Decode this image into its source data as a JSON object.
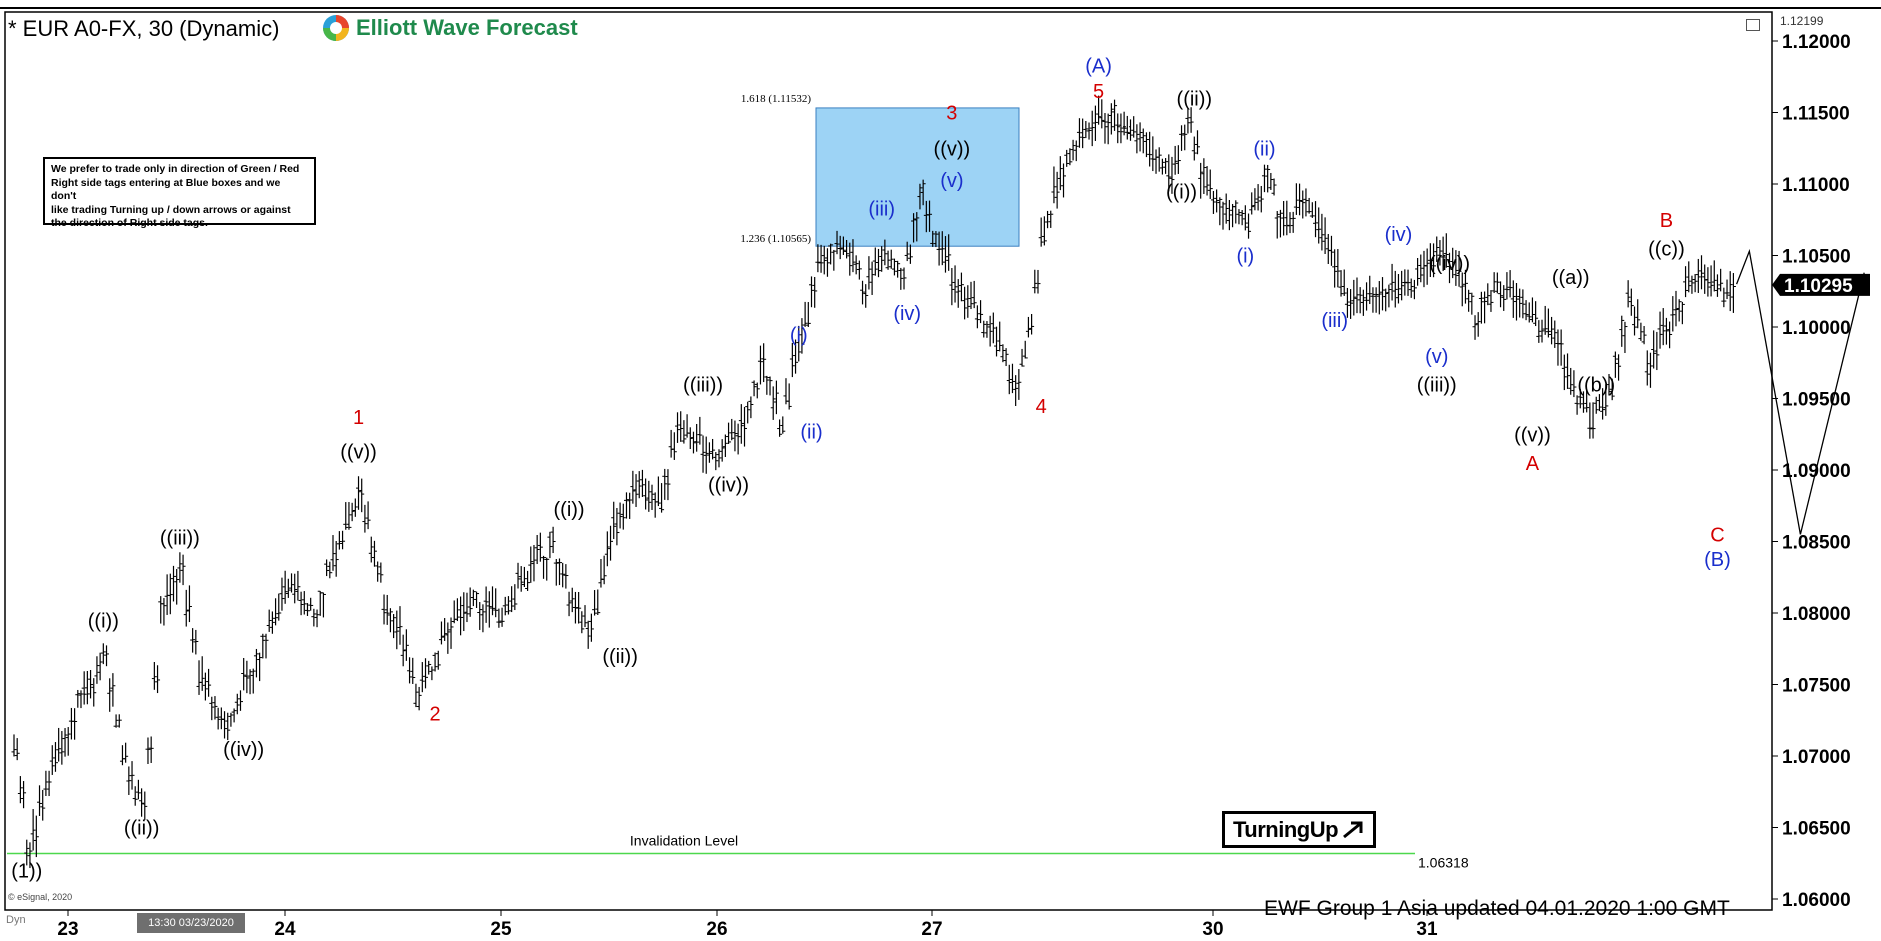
{
  "header": {
    "title": "* EUR A0-FX, 30 (Dynamic)",
    "logo_text": "Elliott Wave Forecast",
    "logo_icon": "ewf-globe-icon"
  },
  "note": {
    "lines": [
      "We prefer to trade only in direction of Green / Red",
      "Right side tags entering at Blue boxes and we don't",
      "like trading Turning up / down arrows or against",
      "the direction of Right side tags."
    ]
  },
  "turning_label": "TurningUp",
  "turning_icon": "arrow-up-right-icon",
  "footer": "EWF Group  1 Asia  updated 04.01.2020 1:00 GMT",
  "esignal": "© eSignal, 2020",
  "dyn_label": "Dyn",
  "time_box": "13:30 03/23/2020",
  "colors": {
    "black": "#000000",
    "red": "#d40000",
    "blue": "#1a2ecc",
    "box_fill": "#9dd3f5",
    "green_line": "#4cd84c",
    "logo_green": "#1f8a4c"
  },
  "chart_data": {
    "type": "ohlc-bars",
    "ylim": [
      1.06,
      1.122
    ],
    "y_ticks": [
      "1.06000",
      "1.06500",
      "1.07000",
      "1.07500",
      "1.08000",
      "1.08500",
      "1.09000",
      "1.09500",
      "1.10000",
      "1.10500",
      "1.11000",
      "1.11500",
      "1.12000"
    ],
    "y_top_label": "1.12199",
    "current_price": "1.10295",
    "x_ticks": [
      "23",
      "24",
      "25",
      "26",
      "27",
      "30",
      "31"
    ],
    "invalidation": {
      "label": "Invalidation Level",
      "value": 1.06318,
      "value_label": "1.06318"
    },
    "blue_box": {
      "top": 1.11532,
      "bottom": 1.10565,
      "top_label": "1.618 (1.11532)",
      "bottom_label": "1.236 (1.10565)"
    },
    "price_path": [
      [
        0,
        1.0705
      ],
      [
        2,
        1.0635
      ],
      [
        6,
        1.07
      ],
      [
        10,
        1.0735
      ],
      [
        14,
        1.077
      ],
      [
        17,
        1.0705
      ],
      [
        20,
        1.0665
      ],
      [
        23,
        1.0805
      ],
      [
        26,
        1.0825
      ],
      [
        29,
        1.076
      ],
      [
        33,
        1.072
      ],
      [
        38,
        1.077
      ],
      [
        43,
        1.082
      ],
      [
        47,
        1.08
      ],
      [
        51,
        1.0855
      ],
      [
        54,
        1.0885
      ],
      [
        58,
        1.081
      ],
      [
        63,
        1.0745
      ],
      [
        67,
        1.0785
      ],
      [
        71,
        1.0805
      ],
      [
        76,
        1.08
      ],
      [
        80,
        1.0825
      ],
      [
        84,
        1.0848
      ],
      [
        87,
        1.0815
      ],
      [
        90,
        1.079
      ],
      [
        94,
        1.086
      ],
      [
        97,
        1.089
      ],
      [
        101,
        1.0875
      ],
      [
        104,
        1.0935
      ],
      [
        107,
        1.0915
      ],
      [
        110,
        1.0905
      ],
      [
        114,
        1.0935
      ],
      [
        117,
        1.097
      ],
      [
        120,
        1.0935
      ],
      [
        123,
        1.099
      ],
      [
        126,
        1.104
      ],
      [
        129,
        1.106
      ],
      [
        133,
        1.1025
      ],
      [
        136,
        1.105
      ],
      [
        139,
        1.104
      ],
      [
        142,
        1.1088
      ],
      [
        145,
        1.106
      ],
      [
        148,
        1.102
      ],
      [
        151,
        1.101
      ],
      [
        154,
        1.0985
      ],
      [
        157,
        1.096
      ],
      [
        159,
        1.1
      ],
      [
        161,
        1.106
      ],
      [
        164,
        1.111
      ],
      [
        167,
        1.113
      ],
      [
        170,
        1.1152
      ],
      [
        174,
        1.114
      ],
      [
        178,
        1.1125
      ],
      [
        181,
        1.111
      ],
      [
        184,
        1.1143
      ],
      [
        187,
        1.1095
      ],
      [
        190,
        1.1085
      ],
      [
        193,
        1.107
      ],
      [
        196,
        1.1108
      ],
      [
        199,
        1.107
      ],
      [
        202,
        1.1085
      ],
      [
        205,
        1.1065
      ],
      [
        208,
        1.103
      ],
      [
        211,
        1.1015
      ],
      [
        214,
        1.103
      ],
      [
        217,
        1.102
      ],
      [
        220,
        1.104
      ],
      [
        223,
        1.1055
      ],
      [
        226,
        1.1045
      ],
      [
        229,
        1.1
      ],
      [
        232,
        1.103
      ],
      [
        235,
        1.1025
      ],
      [
        238,
        1.1005
      ],
      [
        241,
        1.0995
      ],
      [
        244,
        1.096
      ],
      [
        247,
        1.0935
      ],
      [
        250,
        1.0955
      ],
      [
        253,
        1.1025
      ],
      [
        256,
        1.0975
      ],
      [
        259,
        1.1005
      ],
      [
        262,
        1.1025
      ],
      [
        265,
        1.1035
      ],
      [
        268,
        1.102
      ],
      [
        270,
        1.103
      ]
    ],
    "projection": [
      [
        270,
        1.103
      ],
      [
        272,
        1.1053
      ],
      [
        280,
        1.0855
      ],
      [
        290,
        1.1038
      ]
    ],
    "wave_labels": [
      {
        "text": "(1))",
        "color": "black",
        "x": 2,
        "y": 1.0615
      },
      {
        "text": "((i))",
        "color": "black",
        "x": 14,
        "y": 1.079
      },
      {
        "text": "((ii))",
        "color": "black",
        "x": 20,
        "y": 1.0645
      },
      {
        "text": "((iii))",
        "color": "black",
        "x": 26,
        "y": 1.0848
      },
      {
        "text": "((iv))",
        "color": "black",
        "x": 36,
        "y": 1.07
      },
      {
        "text": "((v))",
        "color": "black",
        "x": 54,
        "y": 1.0908
      },
      {
        "text": "1",
        "color": "red",
        "x": 54,
        "y": 1.0932
      },
      {
        "text": "2",
        "color": "red",
        "x": 66,
        "y": 1.0725
      },
      {
        "text": "((i))",
        "color": "black",
        "x": 87,
        "y": 1.0868
      },
      {
        "text": "((ii))",
        "color": "black",
        "x": 95,
        "y": 1.0765
      },
      {
        "text": "((iii))",
        "color": "black",
        "x": 108,
        "y": 1.0955
      },
      {
        "text": "((iv))",
        "color": "black",
        "x": 112,
        "y": 1.0885
      },
      {
        "text": "(i)",
        "color": "blue",
        "x": 123,
        "y": 1.099
      },
      {
        "text": "(ii)",
        "color": "blue",
        "x": 125,
        "y": 1.0922
      },
      {
        "text": "(iii)",
        "color": "blue",
        "x": 136,
        "y": 1.1078
      },
      {
        "text": "(iv)",
        "color": "blue",
        "x": 140,
        "y": 1.1005
      },
      {
        "text": "(v)",
        "color": "blue",
        "x": 147,
        "y": 1.1098
      },
      {
        "text": "((v))",
        "color": "black",
        "x": 147,
        "y": 1.112
      },
      {
        "text": "3",
        "color": "red",
        "x": 147,
        "y": 1.1145
      },
      {
        "text": "4",
        "color": "red",
        "x": 161,
        "y": 1.094
      },
      {
        "text": "5",
        "color": "red",
        "x": 170,
        "y": 1.116
      },
      {
        "text": "(A)",
        "color": "blue",
        "x": 170,
        "y": 1.1178
      },
      {
        "text": "((i))",
        "color": "black",
        "x": 183,
        "y": 1.109
      },
      {
        "text": "((ii))",
        "color": "black",
        "x": 185,
        "y": 1.1155
      },
      {
        "text": "(i)",
        "color": "blue",
        "x": 193,
        "y": 1.1045
      },
      {
        "text": "(ii)",
        "color": "blue",
        "x": 196,
        "y": 1.112
      },
      {
        "text": "(iii)",
        "color": "blue",
        "x": 207,
        "y": 1.1
      },
      {
        "text": "(iv)",
        "color": "blue",
        "x": 217,
        "y": 1.106
      },
      {
        "text": "((iv))",
        "color": "black",
        "x": 225,
        "y": 1.104
      },
      {
        "text": "(v)",
        "color": "blue",
        "x": 223,
        "y": 1.0975
      },
      {
        "text": "((iii))",
        "color": "black",
        "x": 223,
        "y": 1.0955
      },
      {
        "text": "((v))",
        "color": "black",
        "x": 238,
        "y": 1.092
      },
      {
        "text": "A",
        "color": "red",
        "x": 238,
        "y": 1.09
      },
      {
        "text": "((a))",
        "color": "black",
        "x": 244,
        "y": 1.103
      },
      {
        "text": "((b))",
        "color": "black",
        "x": 248,
        "y": 1.0955
      },
      {
        "text": "((c))",
        "color": "black",
        "x": 259,
        "y": 1.105
      },
      {
        "text": "B",
        "color": "red",
        "x": 259,
        "y": 1.107
      },
      {
        "text": "C",
        "color": "red",
        "x": 267,
        "y": 1.085
      },
      {
        "text": "(B)",
        "color": "blue",
        "x": 267,
        "y": 1.0833
      }
    ]
  }
}
